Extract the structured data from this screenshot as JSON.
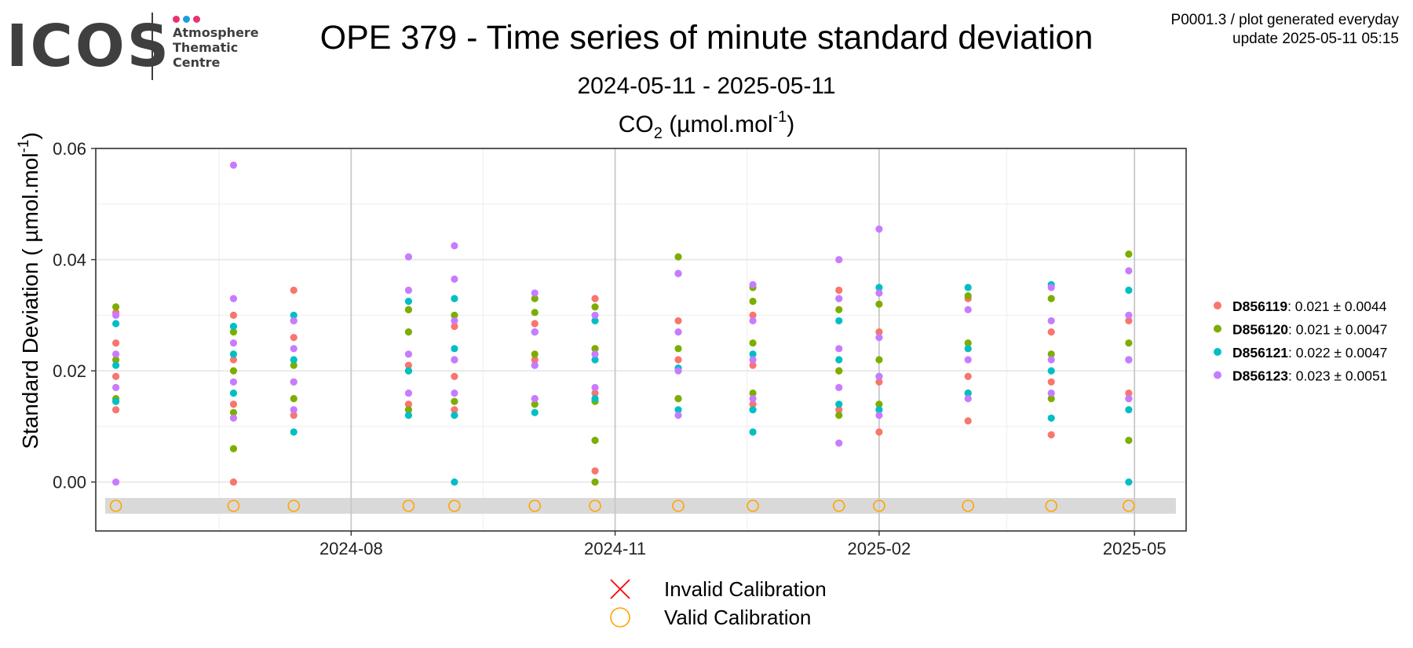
{
  "logo": {
    "word": "ICOS",
    "line1": "Atmosphere",
    "line2": "Thematic",
    "line3": "Centre",
    "dot_colors": [
      "#e8336e",
      "#1f9be0",
      "#e8336e"
    ]
  },
  "header": {
    "title": "OPE 379 - Time series of minute standard deviation",
    "subtitle": "2024-05-11 - 2025-05-11",
    "plot_label": "P0001.3 / plot generated everyday",
    "update_label": "update  2025-05-11 05:15"
  },
  "legend_bottom": {
    "invalid": "Invalid Calibration",
    "valid": "Valid Calibration",
    "invalid_color": "#ff0000",
    "valid_color": "#ffa500"
  },
  "chart_data": {
    "type": "scatter",
    "title": "CO2 (µmol.mol-1)",
    "species": "CO",
    "species_sub": "2",
    "unit_text": "(µmol.mol",
    "unit_sup": "-1",
    "ylabel": "Standard Deviation ( µmol.mol-1)",
    "ylabel_main": "Standard Deviation ( µmol.mol",
    "ylabel_sup": "-1",
    "ylim": [
      -0.0088,
      0.06
    ],
    "yticks": [
      0.0,
      0.02,
      0.04,
      0.06
    ],
    "ytick_labels": [
      "0.00",
      "0.02",
      "0.04",
      "0.06"
    ],
    "xlim": [
      "2024-05-04",
      "2025-05-19"
    ],
    "xticks": [
      "2024-08-01",
      "2024-11-01",
      "2025-02-01",
      "2025-05-01"
    ],
    "xtick_labels": [
      "2024-08",
      "2024-11",
      "2025-02",
      "2025-05"
    ],
    "grid": true,
    "legend_position": "right",
    "calibration_dates": [
      "2024-05-11",
      "2024-06-21",
      "2024-07-12",
      "2024-08-21",
      "2024-09-06",
      "2024-10-04",
      "2024-10-25",
      "2024-11-23",
      "2024-12-19",
      "2025-01-18",
      "2025-02-01",
      "2025-03-04",
      "2025-04-02",
      "2025-04-29"
    ],
    "calibration_status": [
      "valid",
      "valid",
      "valid",
      "valid",
      "valid",
      "valid",
      "valid",
      "valid",
      "valid",
      "valid",
      "valid",
      "valid",
      "valid",
      "valid"
    ],
    "series": [
      {
        "name": "D856119",
        "stat": ": 0.021 ± 0.0044",
        "color": "#f8766d",
        "points": [
          {
            "x": "2024-05-11",
            "ys": [
              0.013,
              0.019,
              0.025,
              0.0305
            ]
          },
          {
            "x": "2024-06-21",
            "ys": [
              0.0,
              0.014,
              0.022,
              0.03
            ]
          },
          {
            "x": "2024-07-12",
            "ys": [
              0.012,
              0.018,
              0.026,
              0.0345
            ]
          },
          {
            "x": "2024-08-21",
            "ys": [
              0.014,
              0.021,
              0.031
            ]
          },
          {
            "x": "2024-09-06",
            "ys": [
              0.013,
              0.019,
              0.028
            ]
          },
          {
            "x": "2024-10-04",
            "ys": [
              0.015,
              0.022,
              0.0285
            ]
          },
          {
            "x": "2024-10-25",
            "ys": [
              0.002,
              0.016,
              0.024,
              0.033
            ]
          },
          {
            "x": "2024-11-23",
            "ys": [
              0.015,
              0.022,
              0.029
            ]
          },
          {
            "x": "2024-12-19",
            "ys": [
              0.014,
              0.021,
              0.03
            ]
          },
          {
            "x": "2025-01-18",
            "ys": [
              0.013,
              0.02,
              0.0345
            ]
          },
          {
            "x": "2025-02-01",
            "ys": [
              0.009,
              0.018,
              0.027
            ]
          },
          {
            "x": "2025-03-04",
            "ys": [
              0.011,
              0.019,
              0.033
            ]
          },
          {
            "x": "2025-04-02",
            "ys": [
              0.0085,
              0.018,
              0.027
            ]
          },
          {
            "x": "2025-04-29",
            "ys": [
              0.016,
              0.022,
              0.029
            ]
          }
        ]
      },
      {
        "name": "D856120",
        "stat": ": 0.021 ± 0.0047",
        "color": "#7cae00",
        "points": [
          {
            "x": "2024-05-11",
            "ys": [
              0.015,
              0.022,
              0.0315
            ]
          },
          {
            "x": "2024-06-21",
            "ys": [
              0.006,
              0.0125,
              0.02,
              0.027
            ]
          },
          {
            "x": "2024-07-12",
            "ys": [
              0.015,
              0.021,
              0.029
            ]
          },
          {
            "x": "2024-08-21",
            "ys": [
              0.013,
              0.02,
              0.027,
              0.031
            ]
          },
          {
            "x": "2024-09-06",
            "ys": [
              0.0145,
              0.022,
              0.03
            ]
          },
          {
            "x": "2024-10-04",
            "ys": [
              0.014,
              0.023,
              0.0305,
              0.033
            ]
          },
          {
            "x": "2024-10-25",
            "ys": [
              0.0,
              0.0075,
              0.0145,
              0.024,
              0.0315
            ]
          },
          {
            "x": "2024-11-23",
            "ys": [
              0.015,
              0.024,
              0.0405
            ]
          },
          {
            "x": "2024-12-19",
            "ys": [
              0.016,
              0.025,
              0.0325,
              0.035
            ]
          },
          {
            "x": "2025-01-18",
            "ys": [
              0.012,
              0.02,
              0.031
            ]
          },
          {
            "x": "2025-02-01",
            "ys": [
              0.014,
              0.022,
              0.032
            ]
          },
          {
            "x": "2025-03-04",
            "ys": [
              0.016,
              0.025,
              0.0335
            ]
          },
          {
            "x": "2025-04-02",
            "ys": [
              0.015,
              0.023,
              0.033
            ]
          },
          {
            "x": "2025-04-29",
            "ys": [
              0.0075,
              0.015,
              0.025,
              0.041
            ]
          }
        ]
      },
      {
        "name": "D856121",
        "stat": ": 0.022 ± 0.0047",
        "color": "#00bfc4",
        "points": [
          {
            "x": "2024-05-11",
            "ys": [
              0.0145,
              0.021,
              0.0285
            ]
          },
          {
            "x": "2024-06-21",
            "ys": [
              0.016,
              0.023,
              0.028
            ]
          },
          {
            "x": "2024-07-12",
            "ys": [
              0.009,
              0.022,
              0.03
            ]
          },
          {
            "x": "2024-08-21",
            "ys": [
              0.012,
              0.02,
              0.0325
            ]
          },
          {
            "x": "2024-09-06",
            "ys": [
              0.0,
              0.012,
              0.024,
              0.033
            ]
          },
          {
            "x": "2024-10-04",
            "ys": [
              0.0125,
              0.021,
              0.027
            ]
          },
          {
            "x": "2024-10-25",
            "ys": [
              0.015,
              0.022,
              0.029
            ]
          },
          {
            "x": "2024-11-23",
            "ys": [
              0.013,
              0.0205,
              0.0375
            ]
          },
          {
            "x": "2024-12-19",
            "ys": [
              0.009,
              0.013,
              0.023
            ]
          },
          {
            "x": "2025-01-18",
            "ys": [
              0.014,
              0.022,
              0.029
            ]
          },
          {
            "x": "2025-02-01",
            "ys": [
              0.013,
              0.019,
              0.035
            ]
          },
          {
            "x": "2025-03-04",
            "ys": [
              0.016,
              0.024,
              0.035
            ]
          },
          {
            "x": "2025-04-02",
            "ys": [
              0.0115,
              0.02,
              0.0355
            ]
          },
          {
            "x": "2025-04-29",
            "ys": [
              0.0,
              0.013,
              0.022,
              0.0345
            ]
          }
        ]
      },
      {
        "name": "D856123",
        "stat": ": 0.023 ± 0.0051",
        "color": "#c77cff",
        "points": [
          {
            "x": "2024-05-11",
            "ys": [
              0.0,
              0.017,
              0.023,
              0.03
            ]
          },
          {
            "x": "2024-06-21",
            "ys": [
              0.0115,
              0.018,
              0.025,
              0.033,
              0.057
            ]
          },
          {
            "x": "2024-07-12",
            "ys": [
              0.013,
              0.018,
              0.024,
              0.029
            ]
          },
          {
            "x": "2024-08-21",
            "ys": [
              0.016,
              0.023,
              0.0345,
              0.0405
            ]
          },
          {
            "x": "2024-09-06",
            "ys": [
              0.016,
              0.022,
              0.029,
              0.0365,
              0.0425
            ]
          },
          {
            "x": "2024-10-04",
            "ys": [
              0.015,
              0.021,
              0.027,
              0.034
            ]
          },
          {
            "x": "2024-10-25",
            "ys": [
              0.017,
              0.023,
              0.03
            ]
          },
          {
            "x": "2024-11-23",
            "ys": [
              0.012,
              0.02,
              0.027,
              0.0375
            ]
          },
          {
            "x": "2024-12-19",
            "ys": [
              0.015,
              0.022,
              0.029,
              0.0355
            ]
          },
          {
            "x": "2025-01-18",
            "ys": [
              0.007,
              0.017,
              0.024,
              0.033,
              0.04
            ]
          },
          {
            "x": "2025-02-01",
            "ys": [
              0.012,
              0.019,
              0.026,
              0.034,
              0.0455
            ]
          },
          {
            "x": "2025-03-04",
            "ys": [
              0.015,
              0.022,
              0.031
            ]
          },
          {
            "x": "2025-04-02",
            "ys": [
              0.016,
              0.022,
              0.029,
              0.035
            ]
          },
          {
            "x": "2025-04-29",
            "ys": [
              0.015,
              0.022,
              0.03,
              0.038
            ]
          }
        ]
      }
    ]
  }
}
